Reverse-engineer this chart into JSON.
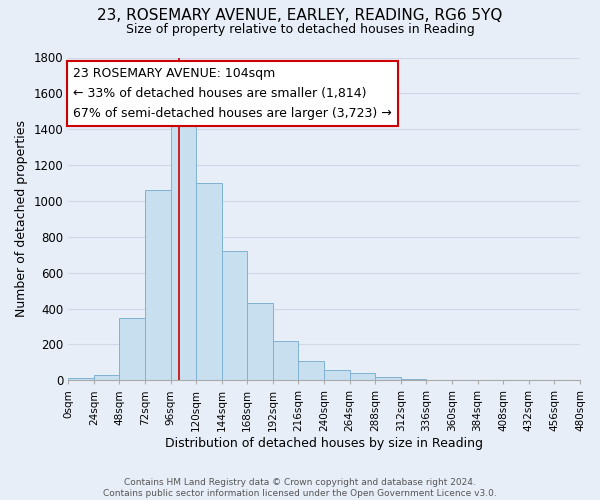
{
  "title": "23, ROSEMARY AVENUE, EARLEY, READING, RG6 5YQ",
  "subtitle": "Size of property relative to detached houses in Reading",
  "xlabel": "Distribution of detached houses by size in Reading",
  "ylabel": "Number of detached properties",
  "bar_color": "#c8dff0",
  "bar_edge_color": "#7fb3d3",
  "bins": [
    0,
    24,
    48,
    72,
    96,
    120,
    144,
    168,
    192,
    216,
    240,
    264,
    288,
    312,
    336,
    360,
    384,
    408,
    432,
    456,
    480
  ],
  "values": [
    15,
    30,
    350,
    1060,
    1450,
    1100,
    720,
    430,
    220,
    110,
    55,
    40,
    18,
    5,
    2,
    1,
    0,
    0,
    0,
    0
  ],
  "property_size": 104,
  "annotation_title": "23 ROSEMARY AVENUE: 104sqm",
  "annotation_line1": "← 33% of detached houses are smaller (1,814)",
  "annotation_line2": "67% of semi-detached houses are larger (3,723) →",
  "box_facecolor": "white",
  "box_edgecolor": "#cc0000",
  "marker_color": "#cc0000",
  "ylim": [
    0,
    1800
  ],
  "yticks": [
    0,
    200,
    400,
    600,
    800,
    1000,
    1200,
    1400,
    1600,
    1800
  ],
  "xtick_labels": [
    "0sqm",
    "24sqm",
    "48sqm",
    "72sqm",
    "96sqm",
    "120sqm",
    "144sqm",
    "168sqm",
    "192sqm",
    "216sqm",
    "240sqm",
    "264sqm",
    "288sqm",
    "312sqm",
    "336sqm",
    "360sqm",
    "384sqm",
    "408sqm",
    "432sqm",
    "456sqm",
    "480sqm"
  ],
  "footer_line1": "Contains HM Land Registry data © Crown copyright and database right 2024.",
  "footer_line2": "Contains public sector information licensed under the Open Government Licence v3.0.",
  "background_color": "#e8eef8",
  "grid_color": "#d0d8e8",
  "title_fontsize": 11,
  "subtitle_fontsize": 9
}
